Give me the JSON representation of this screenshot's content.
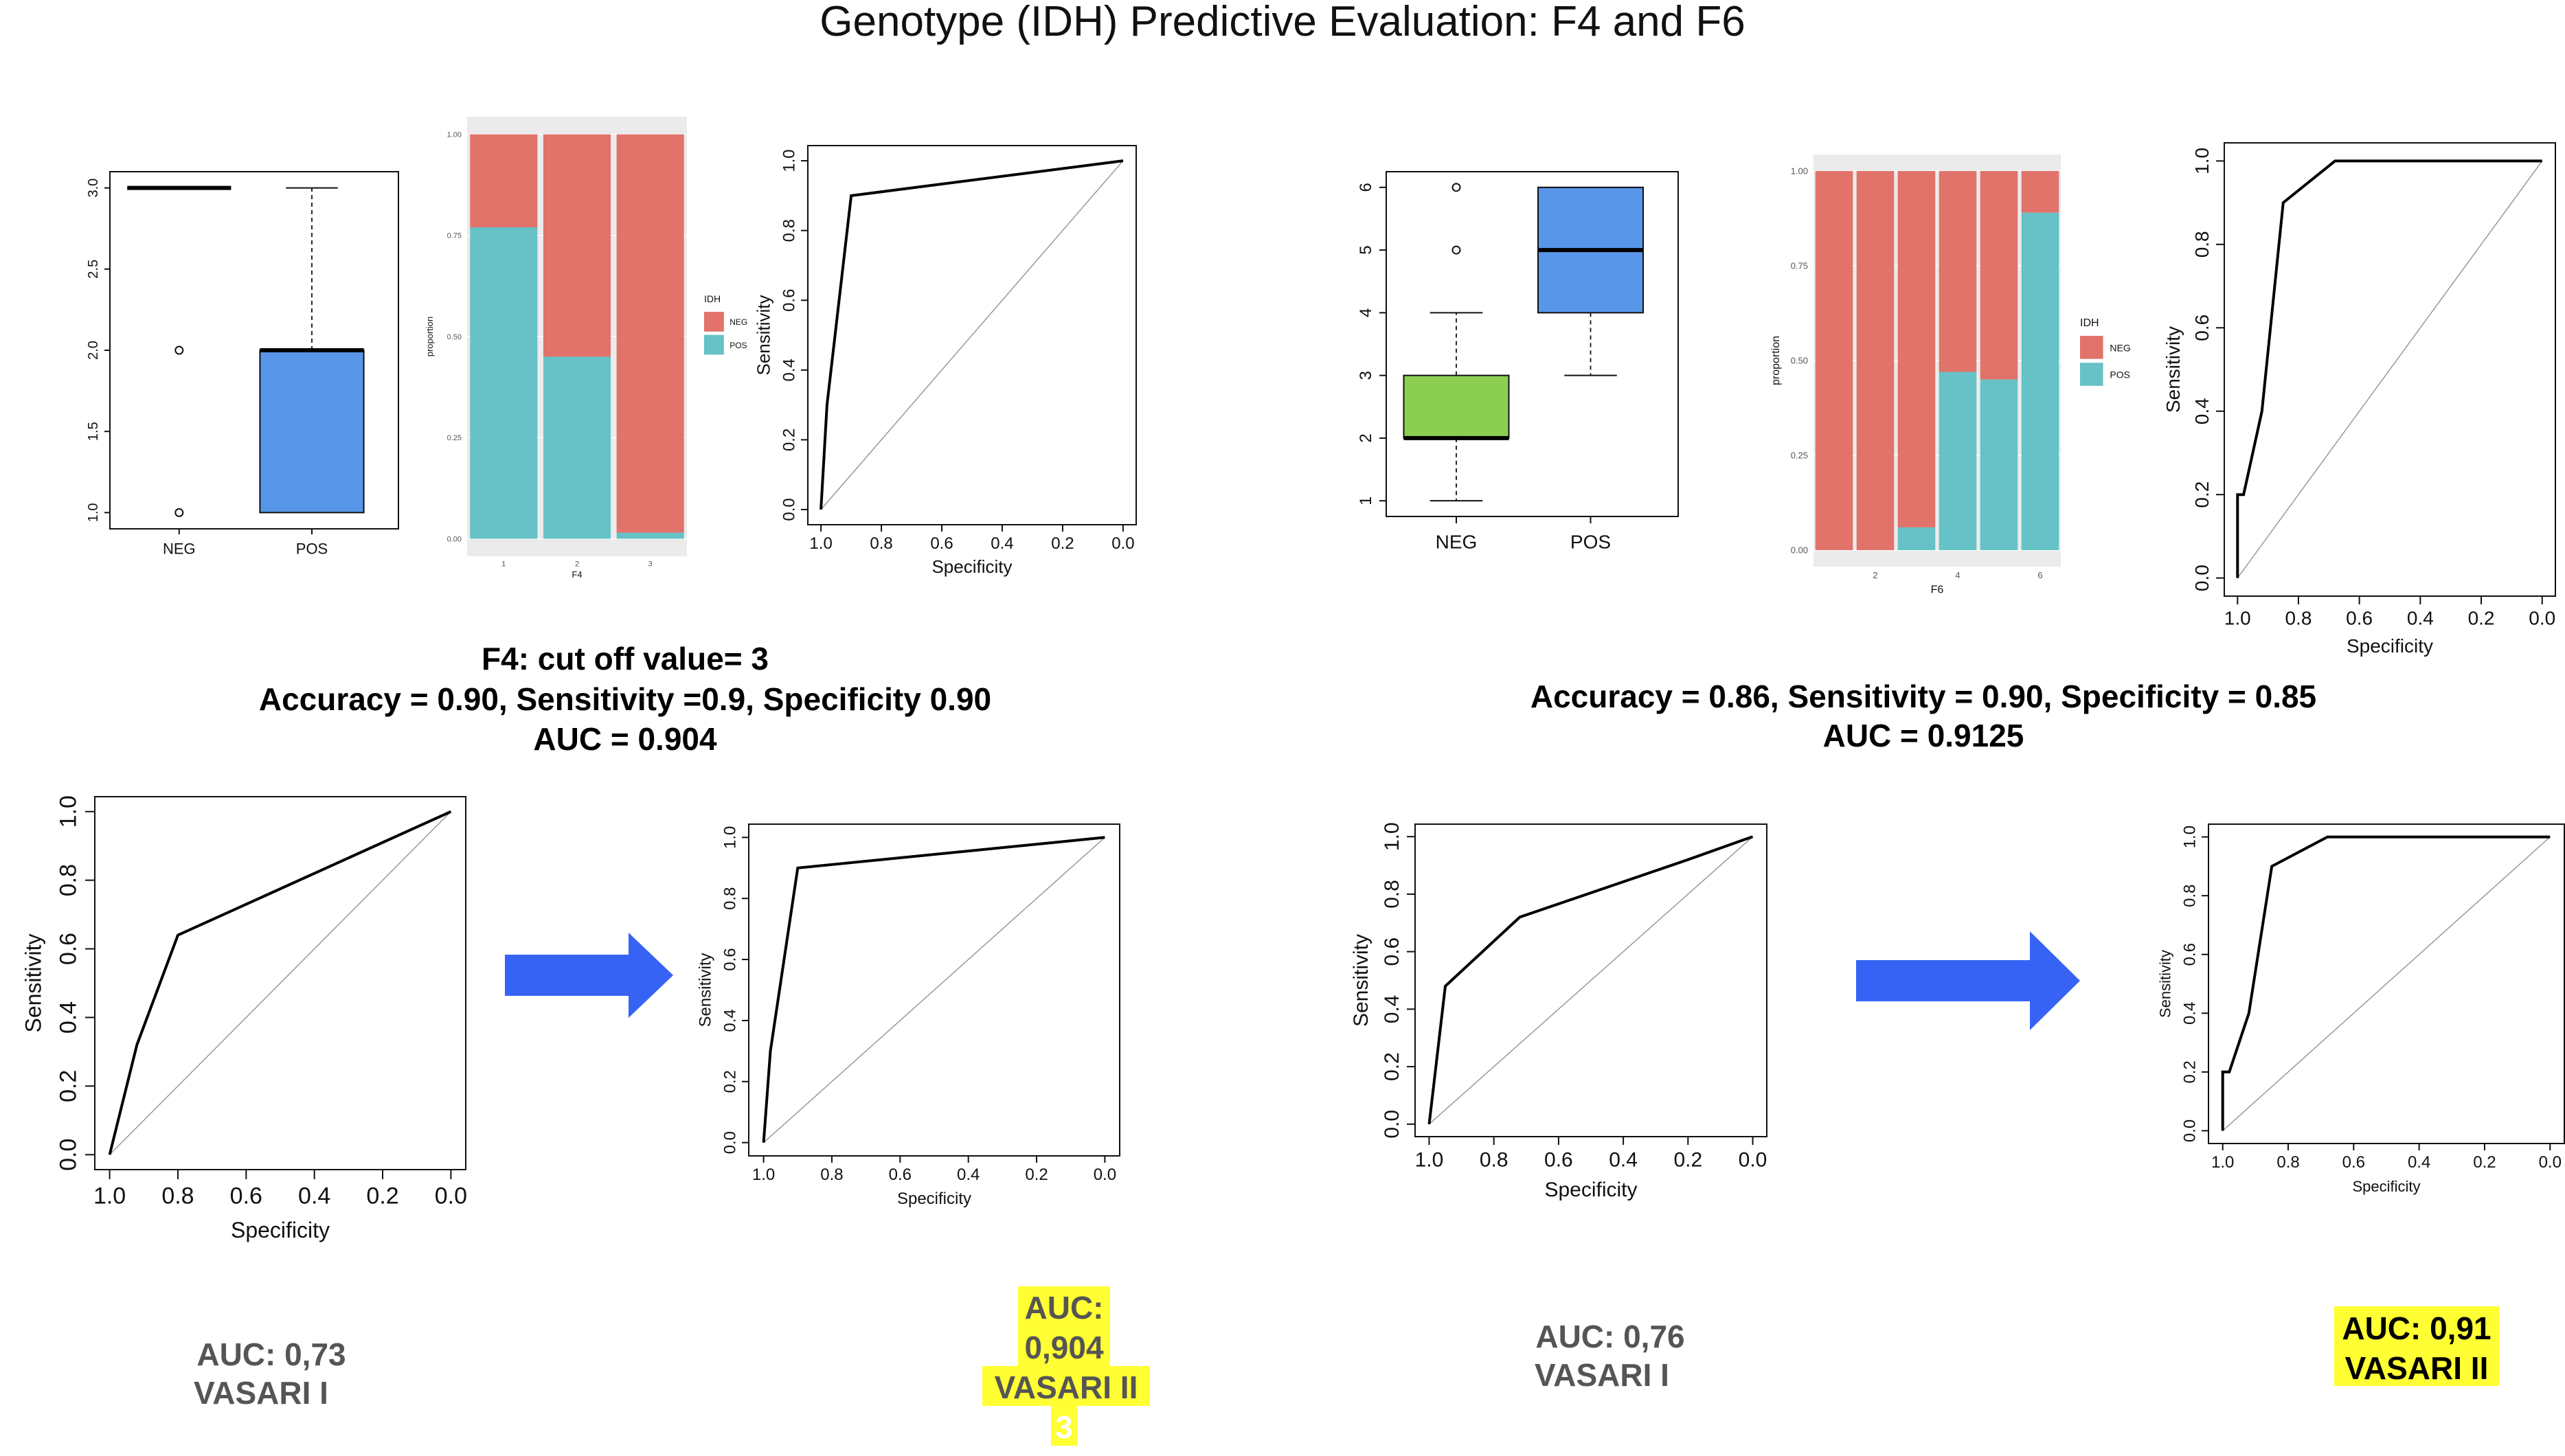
{
  "slide": {
    "title": "Genotype (IDH) Predictive Evaluation: F4 and F6"
  },
  "colors": {
    "neg": "#E1736B",
    "pos": "#66C2C7",
    "box_blue": "#5796E8",
    "box_green": "#8CCF50",
    "arrow": "#3763F5",
    "highlight": "#FFFF33",
    "gray_text": "#555555",
    "grid_bg": "#EBEBEB"
  },
  "stats": {
    "f4_line1": "F4: cut off value= 3",
    "f4_line2": "Accuracy = 0.90, Sensitivity =0.9, Specificity 0.90",
    "f4_line3": "AUC = 0.904",
    "f6_line1": "Accuracy =  0.86, Sensitivity = 0.90, Specificity = 0.85",
    "f6_line2": "AUC = 0.9125"
  },
  "captions": {
    "c1_line1": "AUC: 0,73",
    "c1_line2": "VASARI I",
    "c2_line1": "AUC:",
    "c2_line2": "0,904",
    "c2_line3": "VASARI II",
    "c2_line4": "3",
    "c3_line1": "AUC: 0,76",
    "c3_line2": "VASARI I",
    "c4_line1": "AUC: 0,91",
    "c4_line2": "VASARI II"
  },
  "chart_data": [
    {
      "id": "f4_box",
      "type": "box",
      "categories": [
        "NEG",
        "POS"
      ],
      "yticks": [
        "1.0",
        "1.5",
        "2.0",
        "2.5",
        "3.0"
      ],
      "ylim": [
        0.9,
        3.1
      ],
      "boxes": [
        {
          "name": "NEG",
          "min": 3,
          "q1": 3,
          "median": 3,
          "q3": 3,
          "max": 3,
          "outliers": [
            2,
            1
          ],
          "color": "#FFFFFF"
        },
        {
          "name": "POS",
          "min": 1,
          "q1": 1,
          "median": 2,
          "q3": 2,
          "max": 3,
          "outliers": [],
          "color": "#5796E8"
        }
      ]
    },
    {
      "id": "f4_bar",
      "type": "stacked_bar",
      "categories": [
        "1",
        "2",
        "3"
      ],
      "xlabel": "F4",
      "ylabel": "proportion",
      "yticks": [
        "0.00",
        "0.25",
        "0.50",
        "0.75",
        "1.00"
      ],
      "series": [
        {
          "name": "POS",
          "values": [
            0.77,
            0.45,
            0.015
          ]
        },
        {
          "name": "NEG",
          "values": [
            0.23,
            0.55,
            0.985
          ]
        }
      ],
      "legend_title": "IDH",
      "legend": [
        "NEG",
        "POS"
      ]
    },
    {
      "id": "f4_roc",
      "type": "line",
      "xlabel": "Specificity",
      "ylabel": "Sensitivity",
      "xticks": [
        "1.0",
        "0.8",
        "0.6",
        "0.4",
        "0.2",
        "0.0"
      ],
      "yticks": [
        "0.0",
        "0.2",
        "0.4",
        "0.6",
        "0.8",
        "1.0"
      ],
      "points": [
        [
          1.0,
          0.0
        ],
        [
          0.98,
          0.3
        ],
        [
          0.9,
          0.9
        ],
        [
          0.0,
          1.0
        ]
      ]
    },
    {
      "id": "f6_box",
      "type": "box",
      "categories": [
        "NEG",
        "POS"
      ],
      "yticks": [
        "1",
        "2",
        "3",
        "4",
        "5",
        "6"
      ],
      "ylim": [
        0.75,
        6.25
      ],
      "boxes": [
        {
          "name": "NEG",
          "min": 1,
          "q1": 2,
          "median": 2,
          "q3": 3,
          "max": 4,
          "outliers": [
            5,
            6
          ],
          "color": "#8CCF50"
        },
        {
          "name": "POS",
          "min": 3,
          "q1": 4,
          "median": 5,
          "q3": 6,
          "max": 6,
          "outliers": [],
          "color": "#5796E8"
        }
      ]
    },
    {
      "id": "f6_bar",
      "type": "stacked_bar",
      "categories": [
        "1",
        "2",
        "3",
        "4",
        "5",
        "6"
      ],
      "xticks_shown": [
        "2",
        "4",
        "6"
      ],
      "xlabel": "F6",
      "ylabel": "proportion",
      "yticks": [
        "0.00",
        "0.25",
        "0.50",
        "0.75",
        "1.00"
      ],
      "series": [
        {
          "name": "POS",
          "values": [
            0.0,
            0.0,
            0.06,
            0.47,
            0.45,
            0.89
          ]
        },
        {
          "name": "NEG",
          "values": [
            1.0,
            1.0,
            0.94,
            0.53,
            0.55,
            0.11
          ]
        }
      ],
      "legend_title": "IDH",
      "legend": [
        "NEG",
        "POS"
      ]
    },
    {
      "id": "f6_roc",
      "type": "line",
      "xlabel": "Specificity",
      "ylabel": "Sensitivity",
      "xticks": [
        "1.0",
        "0.8",
        "0.6",
        "0.4",
        "0.2",
        "0.0"
      ],
      "yticks": [
        "0.0",
        "0.2",
        "0.4",
        "0.6",
        "0.8",
        "1.0"
      ],
      "points": [
        [
          1.0,
          0.0
        ],
        [
          1.0,
          0.2
        ],
        [
          0.98,
          0.2
        ],
        [
          0.92,
          0.4
        ],
        [
          0.85,
          0.9
        ],
        [
          0.68,
          1.0
        ],
        [
          0.0,
          1.0
        ]
      ]
    },
    {
      "id": "roc_vasari1_f4",
      "type": "line",
      "xlabel": "Specificity",
      "ylabel": "Sensitivity",
      "xticks": [
        "1.0",
        "0.8",
        "0.6",
        "0.4",
        "0.2",
        "0.0"
      ],
      "yticks": [
        "0.0",
        "0.2",
        "0.4",
        "0.6",
        "0.8",
        "1.0"
      ],
      "points": [
        [
          1.0,
          0.0
        ],
        [
          0.92,
          0.32
        ],
        [
          0.8,
          0.64
        ],
        [
          0.0,
          1.0
        ]
      ]
    },
    {
      "id": "roc_vasari2_f4",
      "type": "line",
      "xlabel": "Specificity",
      "ylabel": "Sensitivity",
      "xticks": [
        "1.0",
        "0.8",
        "0.6",
        "0.4",
        "0.2",
        "0.0"
      ],
      "yticks": [
        "0.0",
        "0.2",
        "0.4",
        "0.6",
        "0.8",
        "1.0"
      ],
      "points": [
        [
          1.0,
          0.0
        ],
        [
          0.98,
          0.3
        ],
        [
          0.9,
          0.9
        ],
        [
          0.0,
          1.0
        ]
      ]
    },
    {
      "id": "roc_vasari1_f6",
      "type": "line",
      "xlabel": "Specificity",
      "ylabel": "Sensitivity",
      "xticks": [
        "1.0",
        "0.8",
        "0.6",
        "0.4",
        "0.2",
        "0.0"
      ],
      "yticks": [
        "0.0",
        "0.2",
        "0.4",
        "0.6",
        "0.8",
        "1.0"
      ],
      "points": [
        [
          1.0,
          0.0
        ],
        [
          0.95,
          0.48
        ],
        [
          0.72,
          0.72
        ],
        [
          0.2,
          0.92
        ],
        [
          0.0,
          1.0
        ]
      ]
    },
    {
      "id": "roc_vasari2_f6",
      "type": "line",
      "xlabel": "Specificity",
      "ylabel": "Sensitivity",
      "xticks": [
        "1.0",
        "0.8",
        "0.6",
        "0.4",
        "0.2",
        "0.0"
      ],
      "yticks": [
        "0.0",
        "0.2",
        "0.4",
        "0.6",
        "0.8",
        "1.0"
      ],
      "points": [
        [
          1.0,
          0.0
        ],
        [
          1.0,
          0.2
        ],
        [
          0.98,
          0.2
        ],
        [
          0.92,
          0.4
        ],
        [
          0.85,
          0.9
        ],
        [
          0.68,
          1.0
        ],
        [
          0.0,
          1.0
        ]
      ]
    }
  ]
}
